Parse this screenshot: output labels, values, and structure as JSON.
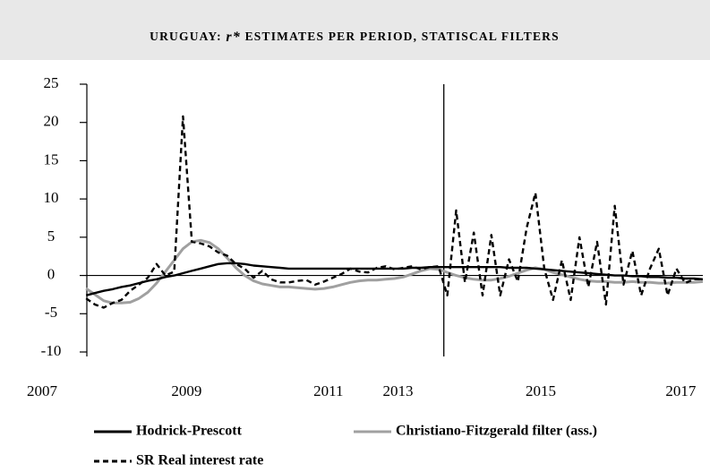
{
  "chart_data": {
    "type": "line",
    "title": [
      "URUGUAY: ",
      "r*",
      " ESTIMATES PER PERIOD, STATISCAL FILTERS"
    ],
    "x": [
      0,
      1,
      2,
      3,
      4,
      5,
      6,
      7,
      8,
      9,
      10,
      11,
      12,
      13,
      14,
      15,
      16,
      17,
      18,
      19,
      20,
      21,
      22,
      23,
      24,
      25,
      26,
      27,
      28,
      29,
      30,
      31,
      32,
      33,
      34,
      35,
      36,
      37,
      38,
      39,
      40,
      41,
      42,
      43,
      44,
      45,
      46,
      47,
      48,
      49,
      50,
      51,
      52,
      53,
      54,
      55,
      56,
      57,
      58,
      59,
      60,
      61,
      62,
      63,
      64,
      65,
      66,
      67,
      68,
      69,
      70
    ],
    "xlim": [
      -5,
      70
    ],
    "xticks": [
      {
        "value": -5,
        "label": "2007"
      },
      {
        "value": 11.4,
        "label": "2009"
      },
      {
        "value": 27.5,
        "label": "2011"
      },
      {
        "value": 35.4,
        "label": "2013"
      },
      {
        "value": 51.6,
        "label": "2015"
      },
      {
        "value": 67.5,
        "label": "2017"
      }
    ],
    "ylim": [
      -10,
      25
    ],
    "yticks": [
      -10,
      -5,
      0,
      5,
      10,
      15,
      20,
      25
    ],
    "vertical_line": 40.6,
    "series": [
      {
        "name": "Hodrick-Prescott",
        "color": "#000000",
        "line_style": "solid",
        "values": [
          -2.6,
          -2.3,
          -2.0,
          -1.8,
          -1.5,
          -1.3,
          -1.0,
          -0.7,
          -0.5,
          -0.2,
          0.0,
          0.3,
          0.6,
          0.9,
          1.2,
          1.5,
          1.6,
          1.6,
          1.5,
          1.3,
          1.2,
          1.1,
          1.0,
          0.9,
          0.9,
          0.9,
          0.9,
          0.9,
          0.9,
          0.9,
          0.9,
          0.9,
          0.9,
          0.9,
          0.9,
          0.9,
          0.9,
          1.0,
          1.0,
          1.1,
          1.1,
          1.1,
          1.1,
          1.1,
          1.1,
          1.1,
          1.1,
          1.1,
          1.0,
          1.0,
          1.0,
          0.9,
          0.8,
          0.7,
          0.6,
          0.5,
          0.4,
          0.3,
          0.2,
          0.1,
          0.0,
          0.0,
          -0.1,
          -0.1,
          -0.2,
          -0.2,
          -0.3,
          -0.3,
          -0.4,
          -0.4,
          -0.5
        ]
      },
      {
        "name": "Christiano-Fitzgerald filter (ass.)",
        "color": "#a0a0a0",
        "line_style": "solid",
        "values": [
          -1.7,
          -2.5,
          -3.3,
          -3.6,
          -3.6,
          -3.5,
          -3.0,
          -2.2,
          -1.0,
          0.5,
          2.0,
          3.5,
          4.4,
          4.6,
          4.3,
          3.5,
          2.3,
          1.0,
          0.0,
          -0.7,
          -1.1,
          -1.3,
          -1.5,
          -1.5,
          -1.6,
          -1.7,
          -1.8,
          -1.7,
          -1.5,
          -1.2,
          -0.9,
          -0.7,
          -0.6,
          -0.6,
          -0.5,
          -0.4,
          -0.2,
          0.2,
          0.6,
          0.9,
          0.8,
          0.4,
          0.0,
          -0.3,
          -0.5,
          -0.6,
          -0.6,
          -0.4,
          -0.1,
          0.3,
          0.7,
          1.0,
          0.8,
          0.4,
          0.1,
          -0.2,
          -0.5,
          -0.7,
          -0.8,
          -0.8,
          -0.9,
          -0.9,
          -0.8,
          -0.9,
          -0.9,
          -1.0,
          -1.0,
          -0.9,
          -0.9,
          -0.9,
          -0.8
        ]
      },
      {
        "name": "SR Real interest rate",
        "color": "#000000",
        "line_style": "dashed",
        "values": [
          -3.0,
          -3.8,
          -4.2,
          -3.6,
          -3.2,
          -2.0,
          -1.2,
          -0.3,
          1.5,
          0.0,
          0.5,
          20.8,
          4.4,
          4.2,
          3.8,
          3.0,
          2.6,
          1.5,
          0.9,
          -0.3,
          0.6,
          -0.5,
          -0.9,
          -0.9,
          -0.7,
          -0.6,
          -1.2,
          -0.8,
          -0.3,
          0.2,
          0.9,
          0.5,
          0.4,
          1.0,
          1.2,
          0.8,
          1.0,
          1.2,
          0.8,
          1.1,
          1.2,
          -2.6,
          8.5,
          -0.9,
          5.6,
          -2.6,
          5.3,
          -2.6,
          2.1,
          -0.8,
          6.2,
          10.8,
          0.9,
          -3.2,
          2.0,
          -3.2,
          5.0,
          -1.5,
          4.4,
          -3.8,
          9.1,
          -1.2,
          3.2,
          -2.6,
          0.9,
          3.5,
          -2.6,
          0.9,
          -1.0,
          -0.5,
          -0.5
        ]
      }
    ]
  }
}
